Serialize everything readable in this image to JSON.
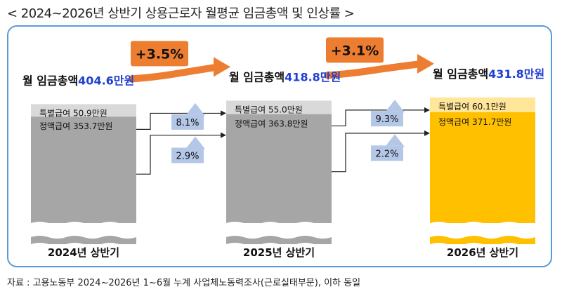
{
  "title": "< 2024~2026년 상반기 상용근로자 월평균 임금총액 및 인상률 >",
  "source": "자료 : 고용노동부 2024~2026년 1~6월 누계 사업체노동력조사(근로실태부문), 이하 동일",
  "colors": {
    "panel_border": "#5b9bd5",
    "bonus_grey": "#d9d9d9",
    "regular_grey": "#a6a6a6",
    "bonus_yellow": "#ffe699",
    "regular_yellow": "#ffc000",
    "arrow_blue": "#b4c7e7",
    "growth_orange": "#ed7d31",
    "value_blue": "#1f3fd0"
  },
  "chart_data": {
    "type": "bar",
    "stacked": true,
    "unit": "만원",
    "categories": [
      "2024년 상반기",
      "2025년 상반기",
      "2026년 상반기"
    ],
    "total_label": "월 임금총액",
    "totals": [
      404.6,
      418.8,
      431.8
    ],
    "total_labels": [
      "404.6만원",
      "418.8만원",
      "431.8만원"
    ],
    "series": [
      {
        "name": "특별급여",
        "values": [
          50.9,
          55.0,
          60.1
        ],
        "labels": [
          "특별급여 50.9만원",
          "특별급여 55.0만원",
          "특별급여 60.1만원"
        ]
      },
      {
        "name": "정액급여",
        "values": [
          353.7,
          363.8,
          371.7
        ],
        "labels": [
          "정액급여 353.7만원",
          "정액급여 363.8만원",
          "정액급여 371.7만원"
        ]
      }
    ],
    "segment_growth": [
      {
        "bonus": 8.1,
        "regular": 2.9,
        "bonus_label": "8.1%",
        "regular_label": "2.9%"
      },
      {
        "bonus": 9.3,
        "regular": 2.2,
        "bonus_label": "9.3%",
        "regular_label": "2.2%"
      }
    ],
    "total_growth": [
      3.5,
      3.1
    ],
    "total_growth_labels": [
      "+3.5%",
      "+3.1%"
    ]
  }
}
